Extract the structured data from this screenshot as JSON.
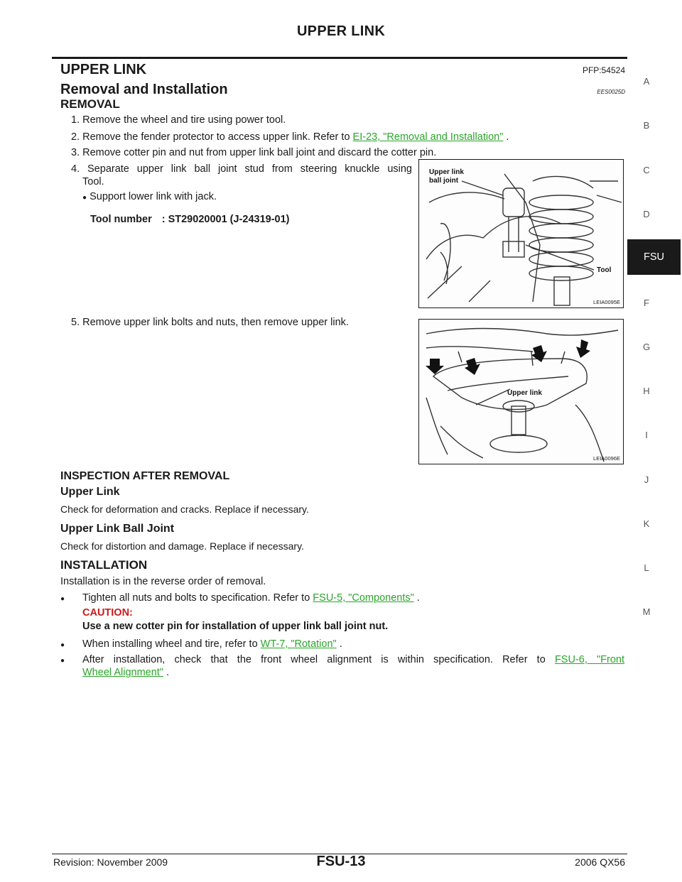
{
  "header": {
    "running_title": "UPPER LINK"
  },
  "title": "UPPER LINK",
  "pfp": "PFP:54524",
  "section": {
    "title": "Removal and Installation",
    "code": "EES0025D"
  },
  "removal": {
    "heading": "REMOVAL",
    "step1": "1. Remove the wheel and tire using power tool.",
    "step2_text": "2. Remove the fender protector to access upper link. Refer to",
    "step2_link": "EI-23, \"Removal and Installation\"",
    "step2_end": ".",
    "step3": "3. Remove cotter pin and nut from upper link ball joint and discard the cotter pin.",
    "step4_line1": "4. Separate upper link ball joint stud from steering knuckle using",
    "step4_line2": "Tool.",
    "step4_bullet": "Support lower link with jack.",
    "tool_label": "Tool number",
    "tool_value": ": ST29020001 (J-24319-01)",
    "step5": "5. Remove upper link bolts and nuts, then remove upper link."
  },
  "figures": {
    "fig1": {
      "label1": "Upper link",
      "label2": "ball joint",
      "label_tool": "Tool",
      "code": "LEIA0095E"
    },
    "fig2": {
      "label": "Upper link",
      "code": "LEIA0096E"
    }
  },
  "inspection": {
    "heading": "INSPECTION AFTER REMOVAL",
    "upper_link_heading": "Upper Link",
    "upper_link_text": "Check for deformation and cracks. Replace if necessary.",
    "ball_joint_heading": "Upper Link Ball Joint",
    "ball_joint_text": "Check for distortion and damage. Replace if necessary."
  },
  "installation": {
    "heading": "INSTALLATION",
    "intro": "Installation is in the reverse order of removal.",
    "b1_text": "Tighten all nuts and bolts to specification. Refer to",
    "b1_link": "FSU-5, \"Components\"",
    "b1_end": ".",
    "caution_label": "CAUTION:",
    "caution_text": "Use a new cotter pin for installation of upper link ball joint nut.",
    "b2_text": "When installing wheel and tire, refer to",
    "b2_link": "WT-7, \"Rotation\"",
    "b2_end": ".",
    "b3_text": "After installation, check that the front wheel alignment is within specification. Refer to",
    "b3_link_line1": "FSU-6, \"Front",
    "b3_link_line2": "Wheel Alignment\"",
    "b3_end": "."
  },
  "side_index": [
    "A",
    "B",
    "C",
    "D",
    "FSU",
    "F",
    "G",
    "H",
    "I",
    "J",
    "K",
    "L",
    "M"
  ],
  "footer": {
    "revision": "Revision: November 2009",
    "page": "FSU-13",
    "model": "2006 QX56"
  }
}
